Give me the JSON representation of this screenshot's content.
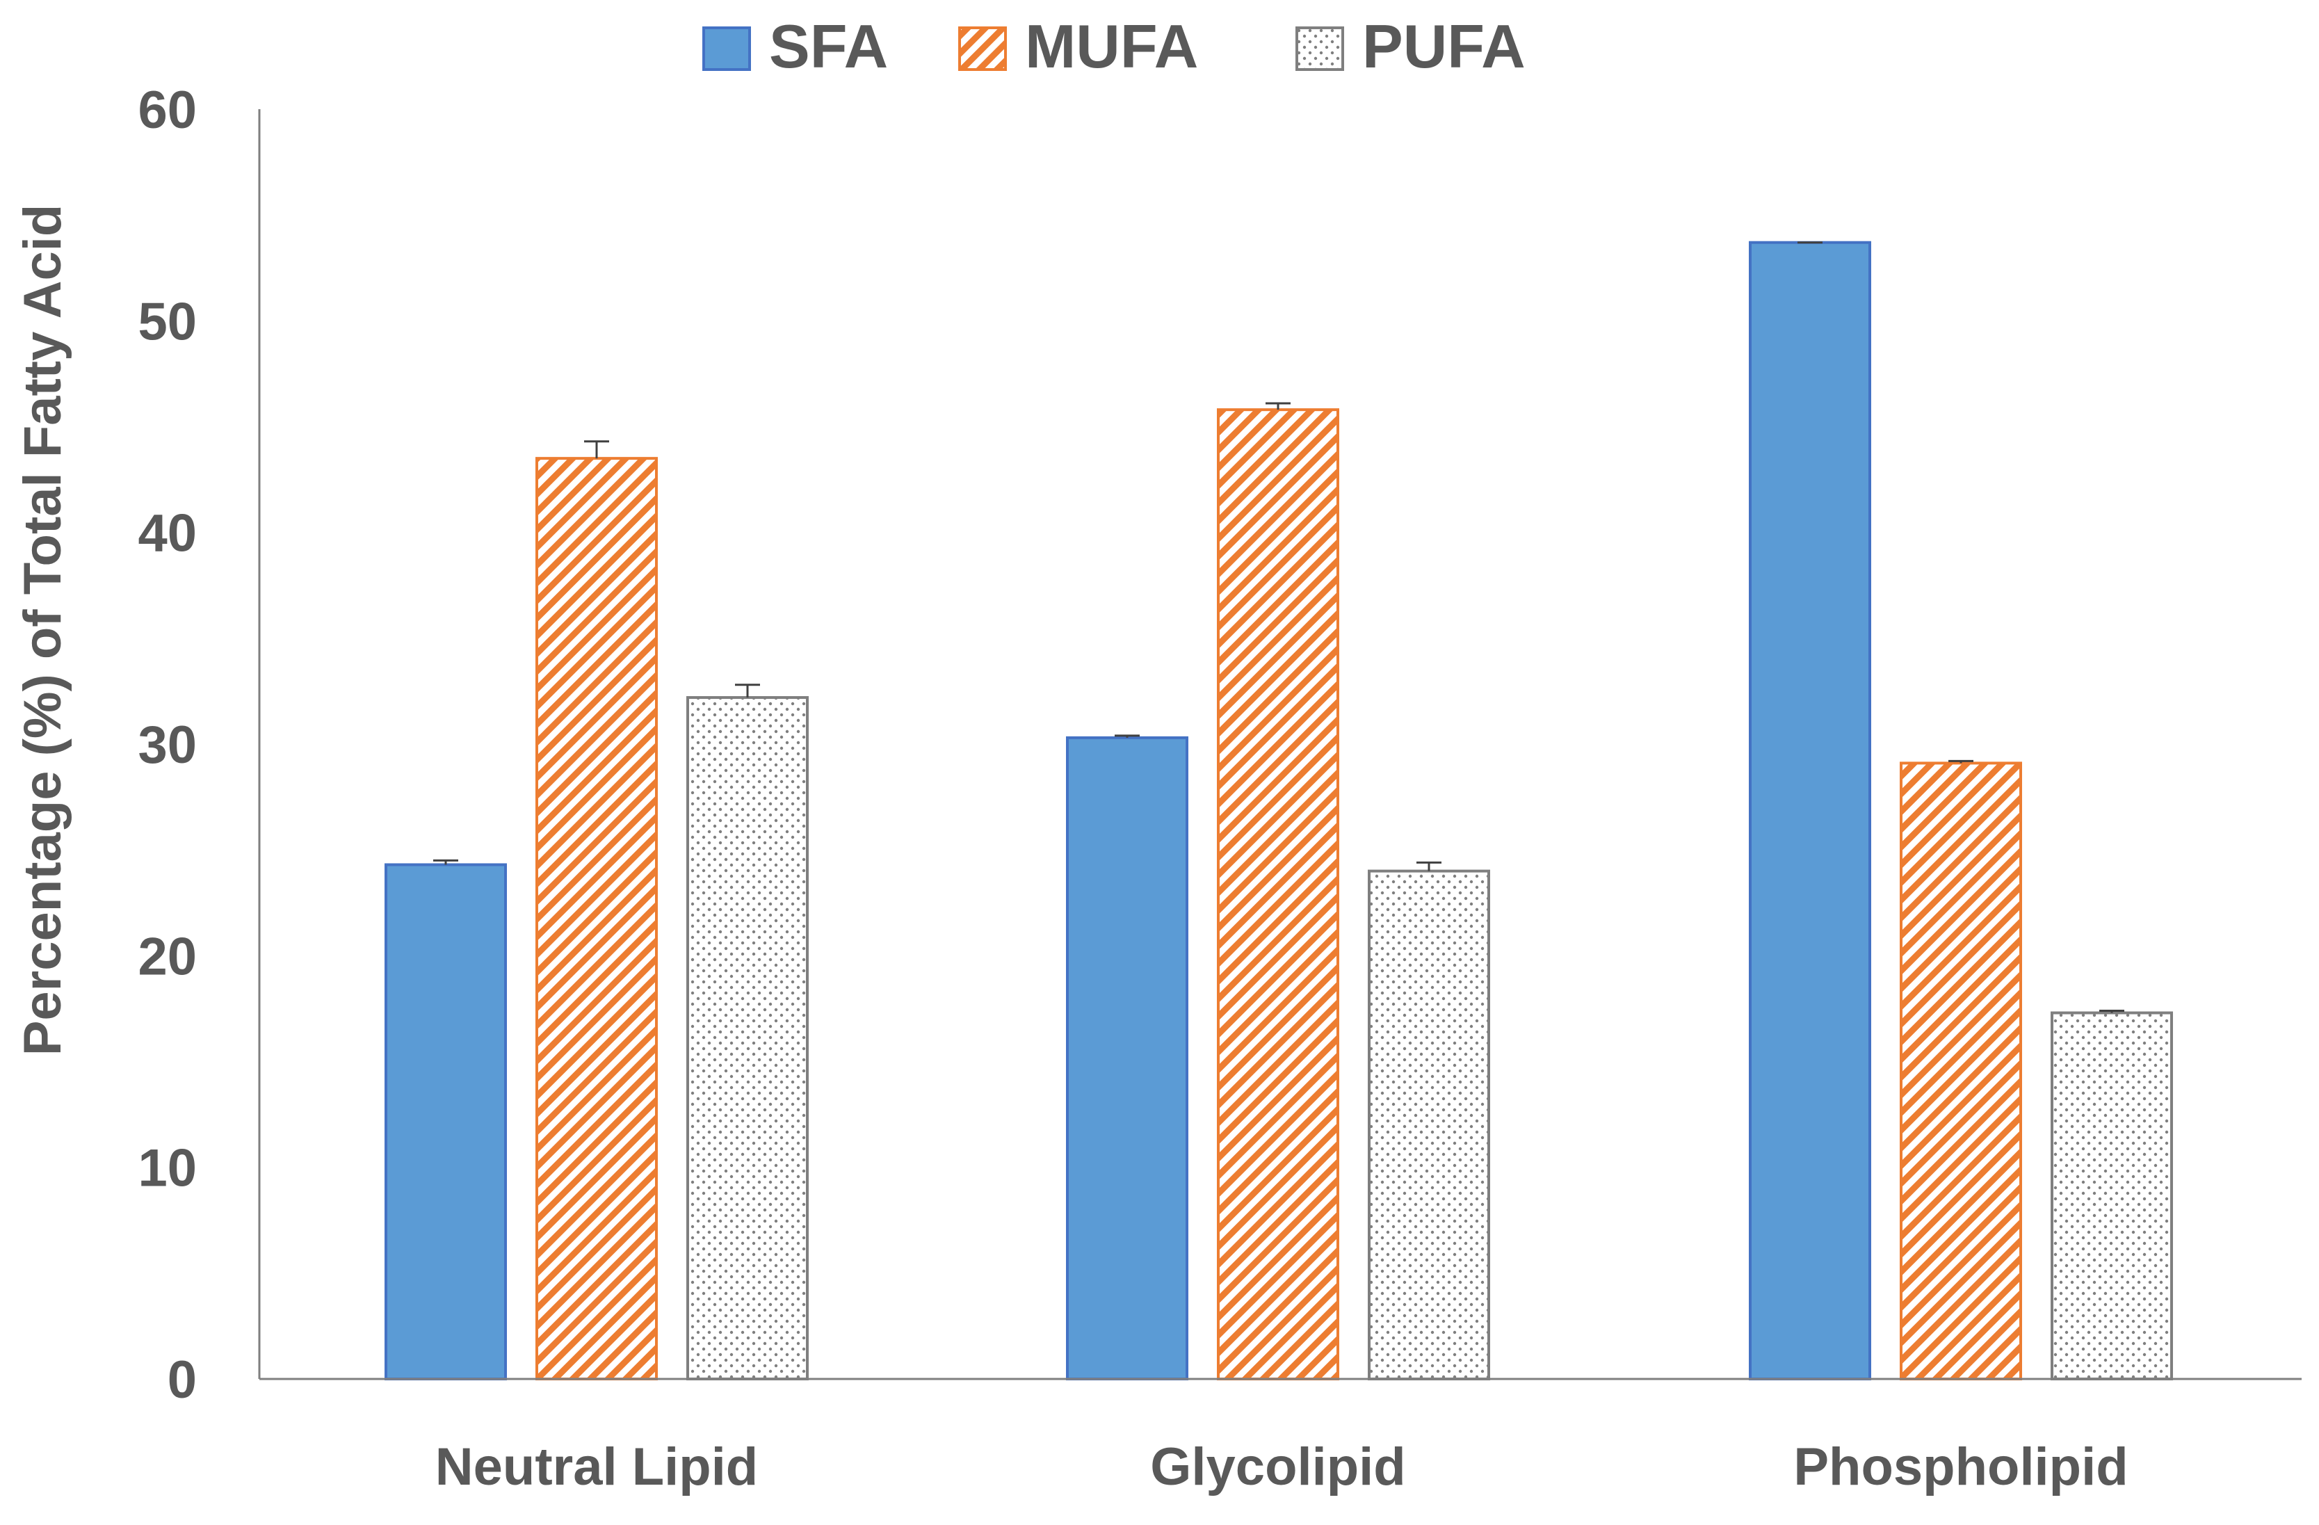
{
  "chart_data": {
    "type": "bar",
    "title": "",
    "xlabel": "",
    "ylabel": "Percentage (%) of Total Fatty Acid",
    "ylim": [
      0,
      60
    ],
    "yticks": [
      0,
      10,
      20,
      30,
      40,
      50,
      60
    ],
    "ytick_labels": [
      "0",
      "10",
      "20",
      "30",
      "40",
      "50",
      "60"
    ],
    "grid": false,
    "legend_position": "top-center",
    "categories": [
      "Neutral Lipid",
      "Glycolipid",
      "Phospholipid"
    ],
    "series": [
      {
        "name": "SFA",
        "pattern": "solid",
        "color": "#5B9BD5",
        "edge_color": "#4472C4",
        "values": [
          24.3,
          30.3,
          53.7
        ],
        "errors": [
          0.2,
          0.1,
          0.0
        ]
      },
      {
        "name": "MUFA",
        "pattern": "diagonal-stripes",
        "color": "#ED7D31",
        "edge_color": "#ED7D31",
        "values": [
          43.5,
          45.8,
          29.1
        ],
        "errors": [
          0.8,
          0.3,
          0.1
        ]
      },
      {
        "name": "PUFA",
        "pattern": "dots",
        "color": "#7F7F7F",
        "edge_color": "#7F7F7F",
        "values": [
          32.2,
          24.0,
          17.3
        ],
        "errors": [
          0.6,
          0.4,
          0.1
        ]
      }
    ]
  }
}
